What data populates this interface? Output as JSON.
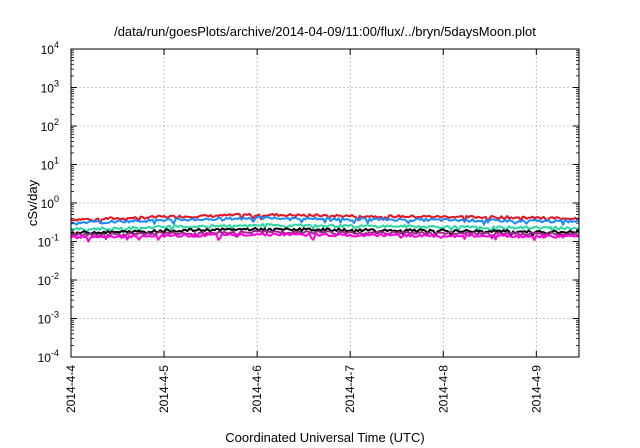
{
  "chart_data": {
    "type": "line",
    "title": "/data/run/goesPlots/archive/2014-04-09/11:00/flux/../bryn/5daysMoon.plot",
    "xlabel": "Coordinated Universal Time (UTC)",
    "ylabel": "cSv/day",
    "yscale": "log",
    "ylim": [
      0.0001,
      10000
    ],
    "xlim": [
      "2014-04-04 00:00",
      "2014-04-09 11:00"
    ],
    "grid": true,
    "x_ticks": [
      "2014-4-4",
      "2014-4-5",
      "2014-4-6",
      "2014-4-7",
      "2014-4-8",
      "2014-4-9"
    ],
    "y_ticks": [
      {
        "base": "10",
        "exp": "-4"
      },
      {
        "base": "10",
        "exp": "-3"
      },
      {
        "base": "10",
        "exp": "-2"
      },
      {
        "base": "10",
        "exp": "-1"
      },
      {
        "base": "10",
        "exp": "0"
      },
      {
        "base": "10",
        "exp": "1"
      },
      {
        "base": "10",
        "exp": "2"
      },
      {
        "base": "10",
        "exp": "3"
      },
      {
        "base": "10",
        "exp": "4"
      }
    ],
    "x": [
      "2014-04-04 00:00",
      "2014-04-04 12:00",
      "2014-04-05 00:00",
      "2014-04-05 12:00",
      "2014-04-06 00:00",
      "2014-04-06 12:00",
      "2014-04-07 00:00",
      "2014-04-07 12:00",
      "2014-04-08 00:00",
      "2014-04-08 12:00",
      "2014-04-09 00:00",
      "2014-04-09 11:00"
    ],
    "series": [
      {
        "color": "#e8121f",
        "values": [
          0.37,
          0.4,
          0.44,
          0.46,
          0.5,
          0.48,
          0.46,
          0.45,
          0.44,
          0.43,
          0.41,
          0.4
        ]
      },
      {
        "color": "#1a8cff",
        "values": [
          0.31,
          0.33,
          0.36,
          0.38,
          0.41,
          0.4,
          0.38,
          0.37,
          0.36,
          0.35,
          0.34,
          0.33
        ]
      },
      {
        "color": "#2bd9a0",
        "values": [
          0.21,
          0.22,
          0.24,
          0.25,
          0.27,
          0.26,
          0.25,
          0.25,
          0.24,
          0.23,
          0.23,
          0.22
        ]
      },
      {
        "color": "#000000",
        "values": [
          0.17,
          0.175,
          0.19,
          0.2,
          0.21,
          0.205,
          0.2,
          0.195,
          0.19,
          0.185,
          0.18,
          0.175
        ]
      },
      {
        "color": "#9c2a8a",
        "values": [
          0.15,
          0.155,
          0.165,
          0.17,
          0.18,
          0.175,
          0.17,
          0.17,
          0.165,
          0.16,
          0.16,
          0.155
        ]
      },
      {
        "color": "#ff00d8",
        "values": [
          0.13,
          0.135,
          0.14,
          0.145,
          0.155,
          0.15,
          0.145,
          0.145,
          0.14,
          0.14,
          0.135,
          0.135
        ]
      }
    ]
  }
}
